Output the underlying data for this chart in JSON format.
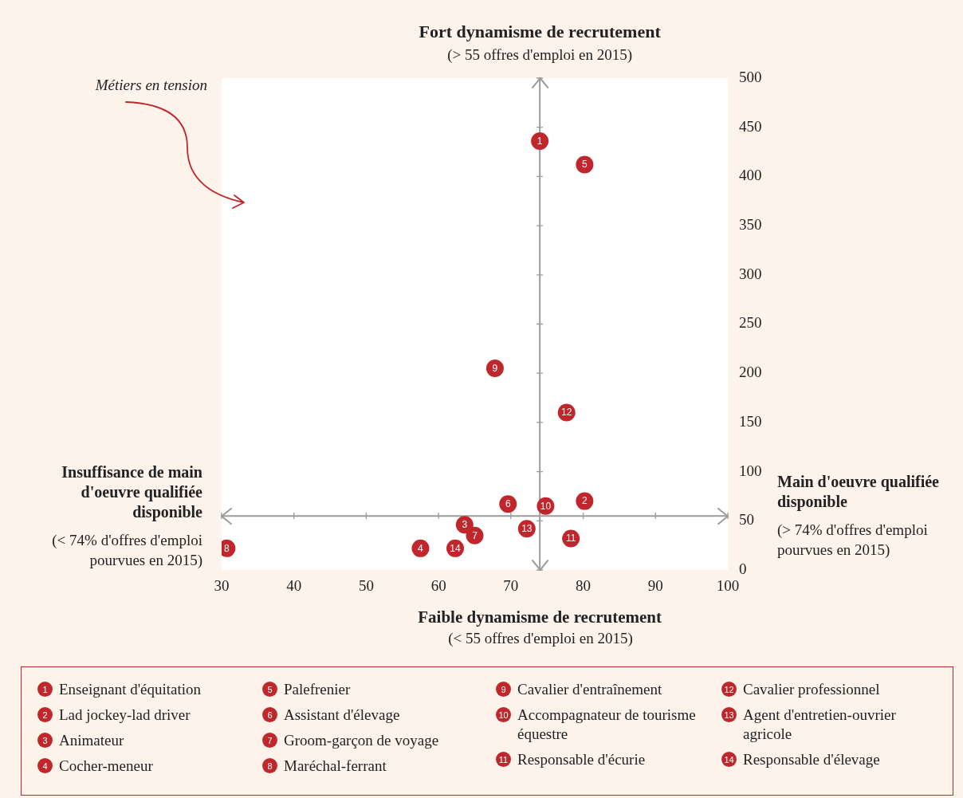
{
  "chart_data": {
    "type": "scatter",
    "title": "Fort dynamisme de recrutement",
    "subtitle": "(> 55 offres d'emploi en 2015)",
    "xlabel": "Faible dynamisme de recrutement",
    "annotations": [
      "(< 55 offres d'emploi en 2015)",
      "Insuffisance de main d'oeuvre qualifiée disponible",
      "(< 74% d'offres d'emploi pourvues en 2015)",
      "Main d'oeuvre qualifiée disponible",
      "(> 74% d'offres d'emploi pourvues en 2015)",
      "Métiers en tension",
      {
        "text": "1",
        "x": 74,
        "y": 436
      },
      {
        "text": "2",
        "x": 80.2,
        "y": 70
      },
      {
        "text": "3",
        "x": 63.6,
        "y": 46
      },
      {
        "text": "4",
        "x": 57.5,
        "y": 22
      },
      {
        "text": "5",
        "x": 80.2,
        "y": 412
      },
      {
        "text": "6",
        "x": 69.6,
        "y": 67
      },
      {
        "text": "7",
        "x": 65,
        "y": 35
      },
      {
        "text": "8",
        "x": 30.7,
        "y": 22
      },
      {
        "text": "9",
        "x": 67.8,
        "y": 205
      },
      {
        "text": "10",
        "x": 74.8,
        "y": 65
      },
      {
        "text": "11",
        "x": 78.3,
        "y": 32
      },
      {
        "text": "12",
        "x": 77.7,
        "y": 160
      },
      {
        "text": "13",
        "x": 72.2,
        "y": 42
      },
      {
        "text": "14",
        "x": 62.3,
        "y": 22
      }
    ],
    "xlim": [
      30,
      100
    ],
    "xticks": [
      30,
      40,
      50,
      60,
      70,
      80,
      90,
      100
    ],
    "ylim": [
      0,
      500
    ],
    "yticks": [
      0,
      50,
      100,
      150,
      200,
      250,
      300,
      350,
      400,
      450,
      500
    ],
    "marker": "circle",
    "legend": "bottom",
    "ref_lines": [
      {
        "axis": "x",
        "value": 74,
        "color": "#9b9b9b"
      },
      {
        "axis": "y",
        "value": 55,
        "color": "#9b9b9b"
      }
    ],
    "series": [
      {
        "name": "Enseignant d'équitation",
        "color": "#c0272d",
        "x": [
          74
        ],
        "values": [
          436
        ]
      },
      {
        "name": "Lad jockey-lad driver",
        "color": "#c0272d",
        "x": [
          80.2
        ],
        "values": [
          70
        ]
      },
      {
        "name": "Animateur",
        "color": "#c0272d",
        "x": [
          63.6
        ],
        "values": [
          46
        ]
      },
      {
        "name": "Cocher-meneur",
        "color": "#c0272d",
        "x": [
          57.5
        ],
        "values": [
          22
        ]
      },
      {
        "name": "Palefrenier",
        "color": "#c0272d",
        "x": [
          80.2
        ],
        "values": [
          412
        ]
      },
      {
        "name": "Assistant d'élevage",
        "color": "#c0272d",
        "x": [
          69.6
        ],
        "values": [
          67
        ]
      },
      {
        "name": "Groom-garçon de voyage",
        "color": "#c0272d",
        "x": [
          65
        ],
        "values": [
          35
        ]
      },
      {
        "name": "Maréchal-ferrant",
        "color": "#c0272d",
        "x": [
          30.7
        ],
        "values": [
          22
        ]
      },
      {
        "name": "Cavalier d'entraînement",
        "color": "#c0272d",
        "x": [
          67.8
        ],
        "values": [
          205
        ]
      },
      {
        "name": "Accompagnateur de tourisme équestre",
        "color": "#c0272d",
        "x": [
          74.8
        ],
        "values": [
          65
        ]
      },
      {
        "name": "Responsable d'écurie",
        "color": "#c0272d",
        "x": [
          78.3
        ],
        "values": [
          32
        ]
      },
      {
        "name": "Cavalier professionnel",
        "color": "#c0272d",
        "x": [
          77.7
        ],
        "values": [
          160
        ]
      },
      {
        "name": "Agent d'entretien-ouvrier agricole",
        "color": "#c0272d",
        "x": [
          72.2
        ],
        "values": [
          42
        ]
      },
      {
        "name": "Responsable d'élevage",
        "color": "#c0272d",
        "x": [
          62.3
        ],
        "values": [
          22
        ]
      }
    ]
  }
}
